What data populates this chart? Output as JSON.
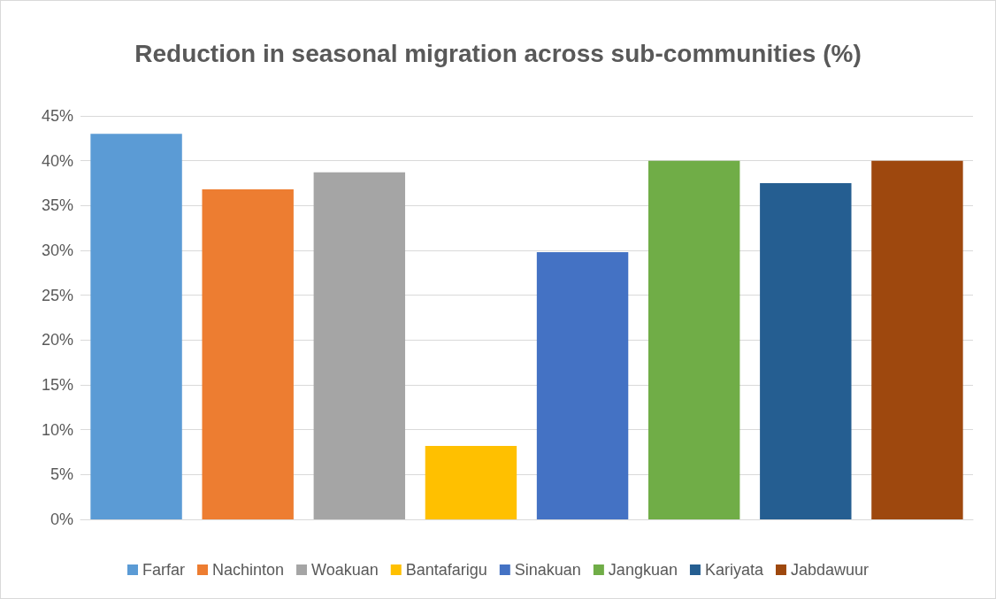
{
  "chart_data": {
    "type": "bar",
    "title": "Reduction in seasonal migration across sub-communities (%)",
    "categories": [
      null,
      null,
      null,
      null,
      null,
      null,
      null,
      null
    ],
    "series": [
      {
        "name": "Farfar",
        "color": "#5b9bd5",
        "values": [
          43,
          null,
          null,
          null,
          null,
          null,
          null,
          null
        ]
      },
      {
        "name": "Nachinton",
        "color": "#ed7d31",
        "values": [
          null,
          36.8,
          null,
          null,
          null,
          null,
          null,
          null
        ]
      },
      {
        "name": "Woakuan",
        "color": "#a5a5a5",
        "values": [
          null,
          null,
          38.7,
          null,
          null,
          null,
          null,
          null
        ]
      },
      {
        "name": "Bantafarigu",
        "color": "#ffc000",
        "values": [
          null,
          null,
          null,
          8.2,
          null,
          null,
          null,
          null
        ]
      },
      {
        "name": "Sinakuan",
        "color": "#4472c4",
        "values": [
          null,
          null,
          null,
          null,
          29.8,
          null,
          null,
          null
        ]
      },
      {
        "name": "Jangkuan",
        "color": "#70ad47",
        "values": [
          null,
          null,
          null,
          null,
          null,
          40,
          null,
          null
        ]
      },
      {
        "name": "Kariyata",
        "color": "#255e91",
        "values": [
          null,
          null,
          null,
          null,
          null,
          null,
          37.5,
          null
        ]
      },
      {
        "name": "Jabdawuur",
        "color": "#9e480e",
        "values": [
          null,
          null,
          null,
          null,
          null,
          null,
          null,
          40
        ]
      }
    ],
    "ylim": [
      0,
      45
    ],
    "yticks": [
      {
        "value": 0,
        "label": "0%"
      },
      {
        "value": 5,
        "label": "5%"
      },
      {
        "value": 10,
        "label": "10%"
      },
      {
        "value": 15,
        "label": "15%"
      },
      {
        "value": 20,
        "label": "20%"
      },
      {
        "value": 25,
        "label": "25%"
      },
      {
        "value": 30,
        "label": "30%"
      },
      {
        "value": 35,
        "label": "35%"
      },
      {
        "value": 40,
        "label": "40%"
      },
      {
        "value": 45,
        "label": "45%"
      }
    ],
    "grid": "y",
    "legend": "bottom"
  }
}
